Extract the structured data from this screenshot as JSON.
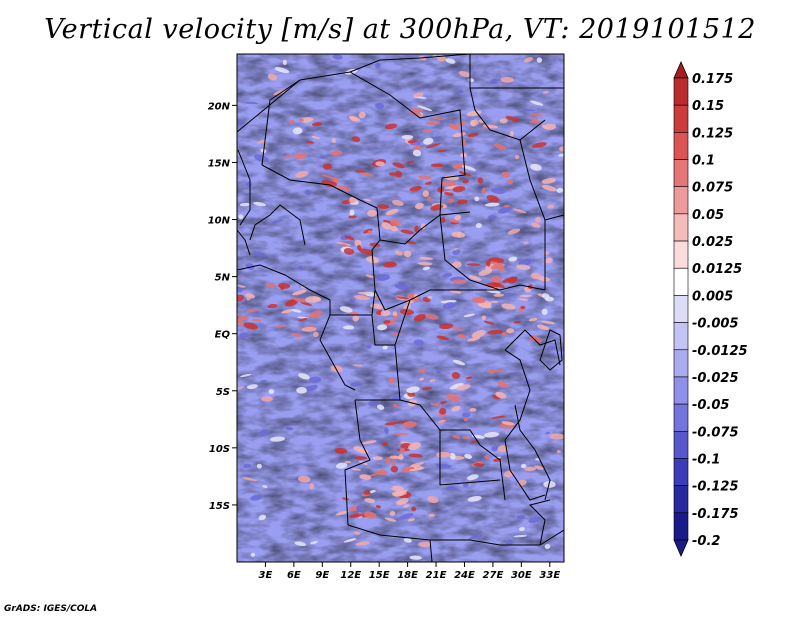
{
  "title": "Vertical velocity [m/s] at 300hPa, VT: 2019101512",
  "credit": "GrADS: IGES/COLA",
  "lat_labels": [
    "20N",
    "15N",
    "10N",
    "5N",
    "EQ",
    "5S",
    "10S",
    "15S"
  ],
  "lat_values": [
    20,
    15,
    10,
    5,
    0,
    -5,
    -10,
    -15
  ],
  "lon_labels": [
    "3E",
    "6E",
    "9E",
    "12E",
    "15E",
    "18E",
    "21E",
    "24E",
    "27E",
    "30E",
    "33E"
  ],
  "lon_values": [
    3,
    6,
    9,
    12,
    15,
    18,
    21,
    24,
    27,
    30,
    33
  ],
  "extent": {
    "lon_min": 0,
    "lon_max": 34.5,
    "lat_min": -20,
    "lat_max": 24.5
  },
  "colorbar": {
    "labels": [
      "0.175",
      "0.15",
      "0.125",
      "0.1",
      "0.075",
      "0.05",
      "0.025",
      "0.0125",
      "0.005",
      "-0.005",
      "-0.0125",
      "-0.025",
      "-0.05",
      "-0.075",
      "-0.1",
      "-0.125",
      "-0.175",
      "-0.2"
    ],
    "colors": [
      "#a51d22",
      "#bc2c2c",
      "#cd3c3c",
      "#dc5454",
      "#e47676",
      "#ee9a9a",
      "#f5bcbc",
      "#fbdcdc",
      "#ffffff",
      "#dcdcf8",
      "#c4c4f4",
      "#aaaaf0",
      "#9090ea",
      "#7474dc",
      "#5858cc",
      "#3c3cb8",
      "#2828a0",
      "#1a1a88"
    ]
  }
}
